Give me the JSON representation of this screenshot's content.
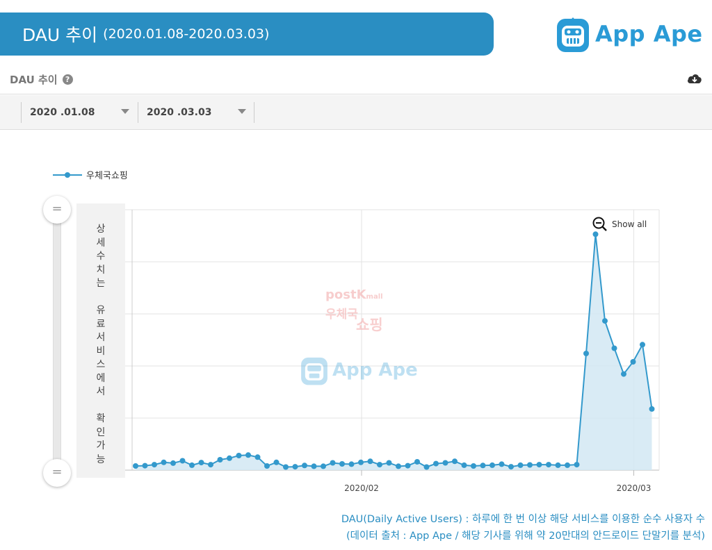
{
  "banner": {
    "title": "DAU 추이",
    "range": "(2020.01.08-2020.03.03)"
  },
  "logo": {
    "text": "App Ape",
    "icon": "app-ape-logo-icon",
    "color": "#2a9bd6"
  },
  "panel": {
    "title": "DAU 추이",
    "help_icon": "?",
    "download_icon": "cloud-download-icon"
  },
  "filters": {
    "start_date": "2020 .01.08",
    "end_date": "2020 .03.03"
  },
  "slider": {
    "note_lines": [
      "상",
      "세",
      "수",
      "치",
      "는",
      "",
      "유",
      "료",
      "서",
      "비",
      "스",
      "에",
      "서",
      "",
      "확",
      "인",
      "가",
      "능"
    ],
    "handle_symbol": "="
  },
  "watermark": {
    "post": "post",
    "k": "K",
    "mall": "mall",
    "kor1": "우체국",
    "kor2": "쇼핑",
    "app": "App Ape"
  },
  "show_all": "Show all",
  "footnotes": [
    "DAU(Daily Active Users) : 하루에 한 번 이상 해당 서비스를 이용한 순수 사용자 수",
    "(데이터 출처 : App Ape / 해당 기사를 위해 약 20만대의 안드로이드 단말기를 분석)"
  ],
  "chart_data": {
    "type": "area",
    "title": "",
    "xlabel": "",
    "ylabel": "",
    "x_ticks": [
      {
        "label": "2020/02",
        "index": 24
      },
      {
        "label": "2020/03",
        "index": 53
      }
    ],
    "ylim": [
      0,
      100
    ],
    "y_gridlines": 5,
    "y_tick_labels_visible": false,
    "grid": true,
    "legend": "top-left",
    "series": [
      {
        "name": "우체국쇼핑",
        "color": "#3399cc",
        "fill": "#d2e8f3",
        "x": [
          "2020-01-08",
          "2020-01-09",
          "2020-01-10",
          "2020-01-11",
          "2020-01-12",
          "2020-01-13",
          "2020-01-14",
          "2020-01-15",
          "2020-01-16",
          "2020-01-17",
          "2020-01-18",
          "2020-01-19",
          "2020-01-20",
          "2020-01-21",
          "2020-01-22",
          "2020-01-23",
          "2020-01-24",
          "2020-01-25",
          "2020-01-26",
          "2020-01-27",
          "2020-01-28",
          "2020-01-29",
          "2020-01-30",
          "2020-01-31",
          "2020-02-01",
          "2020-02-02",
          "2020-02-03",
          "2020-02-04",
          "2020-02-05",
          "2020-02-06",
          "2020-02-07",
          "2020-02-08",
          "2020-02-09",
          "2020-02-10",
          "2020-02-11",
          "2020-02-12",
          "2020-02-13",
          "2020-02-14",
          "2020-02-15",
          "2020-02-16",
          "2020-02-17",
          "2020-02-18",
          "2020-02-19",
          "2020-02-20",
          "2020-02-21",
          "2020-02-22",
          "2020-02-23",
          "2020-02-24",
          "2020-02-25",
          "2020-02-26",
          "2020-02-27",
          "2020-02-28",
          "2020-02-29",
          "2020-03-01",
          "2020-03-02",
          "2020-03-03"
        ],
        "values": [
          1.6,
          1.7,
          2.1,
          3.0,
          2.7,
          3.6,
          1.9,
          2.9,
          2.1,
          4.0,
          4.6,
          5.6,
          5.8,
          5.0,
          1.6,
          3.0,
          1.2,
          1.3,
          1.8,
          1.5,
          1.5,
          2.8,
          2.4,
          2.3,
          3.0,
          3.4,
          2.1,
          2.8,
          1.5,
          1.7,
          3.2,
          1.2,
          2.5,
          2.8,
          3.4,
          1.9,
          1.6,
          1.8,
          1.9,
          2.3,
          1.3,
          1.9,
          2.0,
          2.1,
          2.1,
          1.9,
          1.9,
          2.1,
          44.8,
          90.6,
          57.3,
          46.8,
          36.9,
          41.6,
          48.2,
          23.5
        ]
      }
    ]
  }
}
